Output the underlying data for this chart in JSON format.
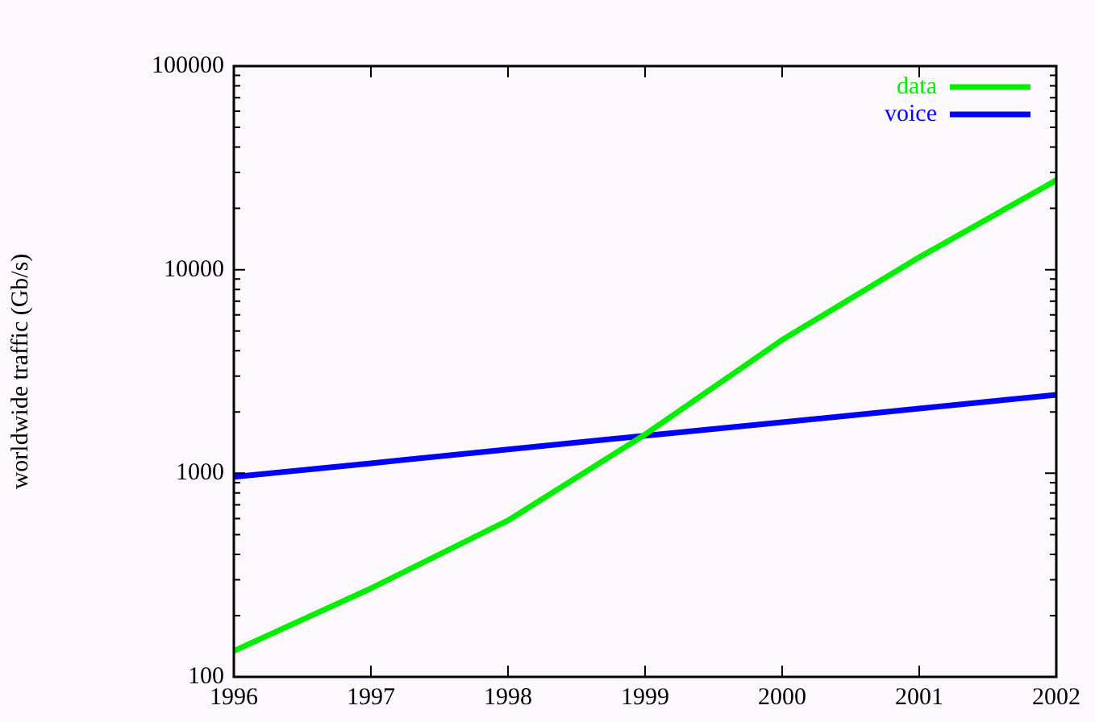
{
  "chart_data": {
    "type": "line",
    "ylabel": "worldwide traffic (Gb/s)",
    "x": [
      1996,
      1997,
      1998,
      1999,
      2000,
      2001,
      2002
    ],
    "series": [
      {
        "name": "data",
        "color": "#00ee00",
        "values": [
          134,
          272,
          586,
          1550,
          4520,
          11500,
          27500
        ]
      },
      {
        "name": "voice",
        "color": "#0000ff",
        "values": [
          960,
          1120,
          1310,
          1530,
          1780,
          2080,
          2430
        ]
      }
    ],
    "xlim": [
      1996,
      2002
    ],
    "xticks": [
      1996,
      1997,
      1998,
      1999,
      2000,
      2001,
      2002
    ],
    "ylim": [
      100,
      100000
    ],
    "yticks": [
      100,
      {
        "value": 200,
        "label": null
      },
      {
        "value": 300,
        "label": null
      },
      {
        "value": 400,
        "label": null
      },
      {
        "value": 500,
        "label": null
      },
      {
        "value": 600,
        "label": null
      },
      {
        "value": 700,
        "label": null
      },
      {
        "value": 800,
        "label": null
      },
      {
        "value": 900,
        "label": null
      },
      1000,
      {
        "value": 2000,
        "label": null
      },
      {
        "value": 3000,
        "label": null
      },
      {
        "value": 4000,
        "label": null
      },
      {
        "value": 5000,
        "label": null
      },
      {
        "value": 6000,
        "label": null
      },
      {
        "value": 7000,
        "label": null
      },
      {
        "value": 8000,
        "label": null
      },
      {
        "value": 9000,
        "label": null
      },
      10000,
      {
        "value": 20000,
        "label": null
      },
      {
        "value": 30000,
        "label": null
      },
      {
        "value": 40000,
        "label": null
      },
      {
        "value": 50000,
        "label": null
      },
      {
        "value": 60000,
        "label": null
      },
      {
        "value": 70000,
        "label": null
      },
      {
        "value": 80000,
        "label": null
      },
      {
        "value": 90000,
        "label": null
      },
      100000
    ],
    "log": "y",
    "grid": false,
    "legend": "top right",
    "marker": "none",
    "line_style": "solid"
  }
}
